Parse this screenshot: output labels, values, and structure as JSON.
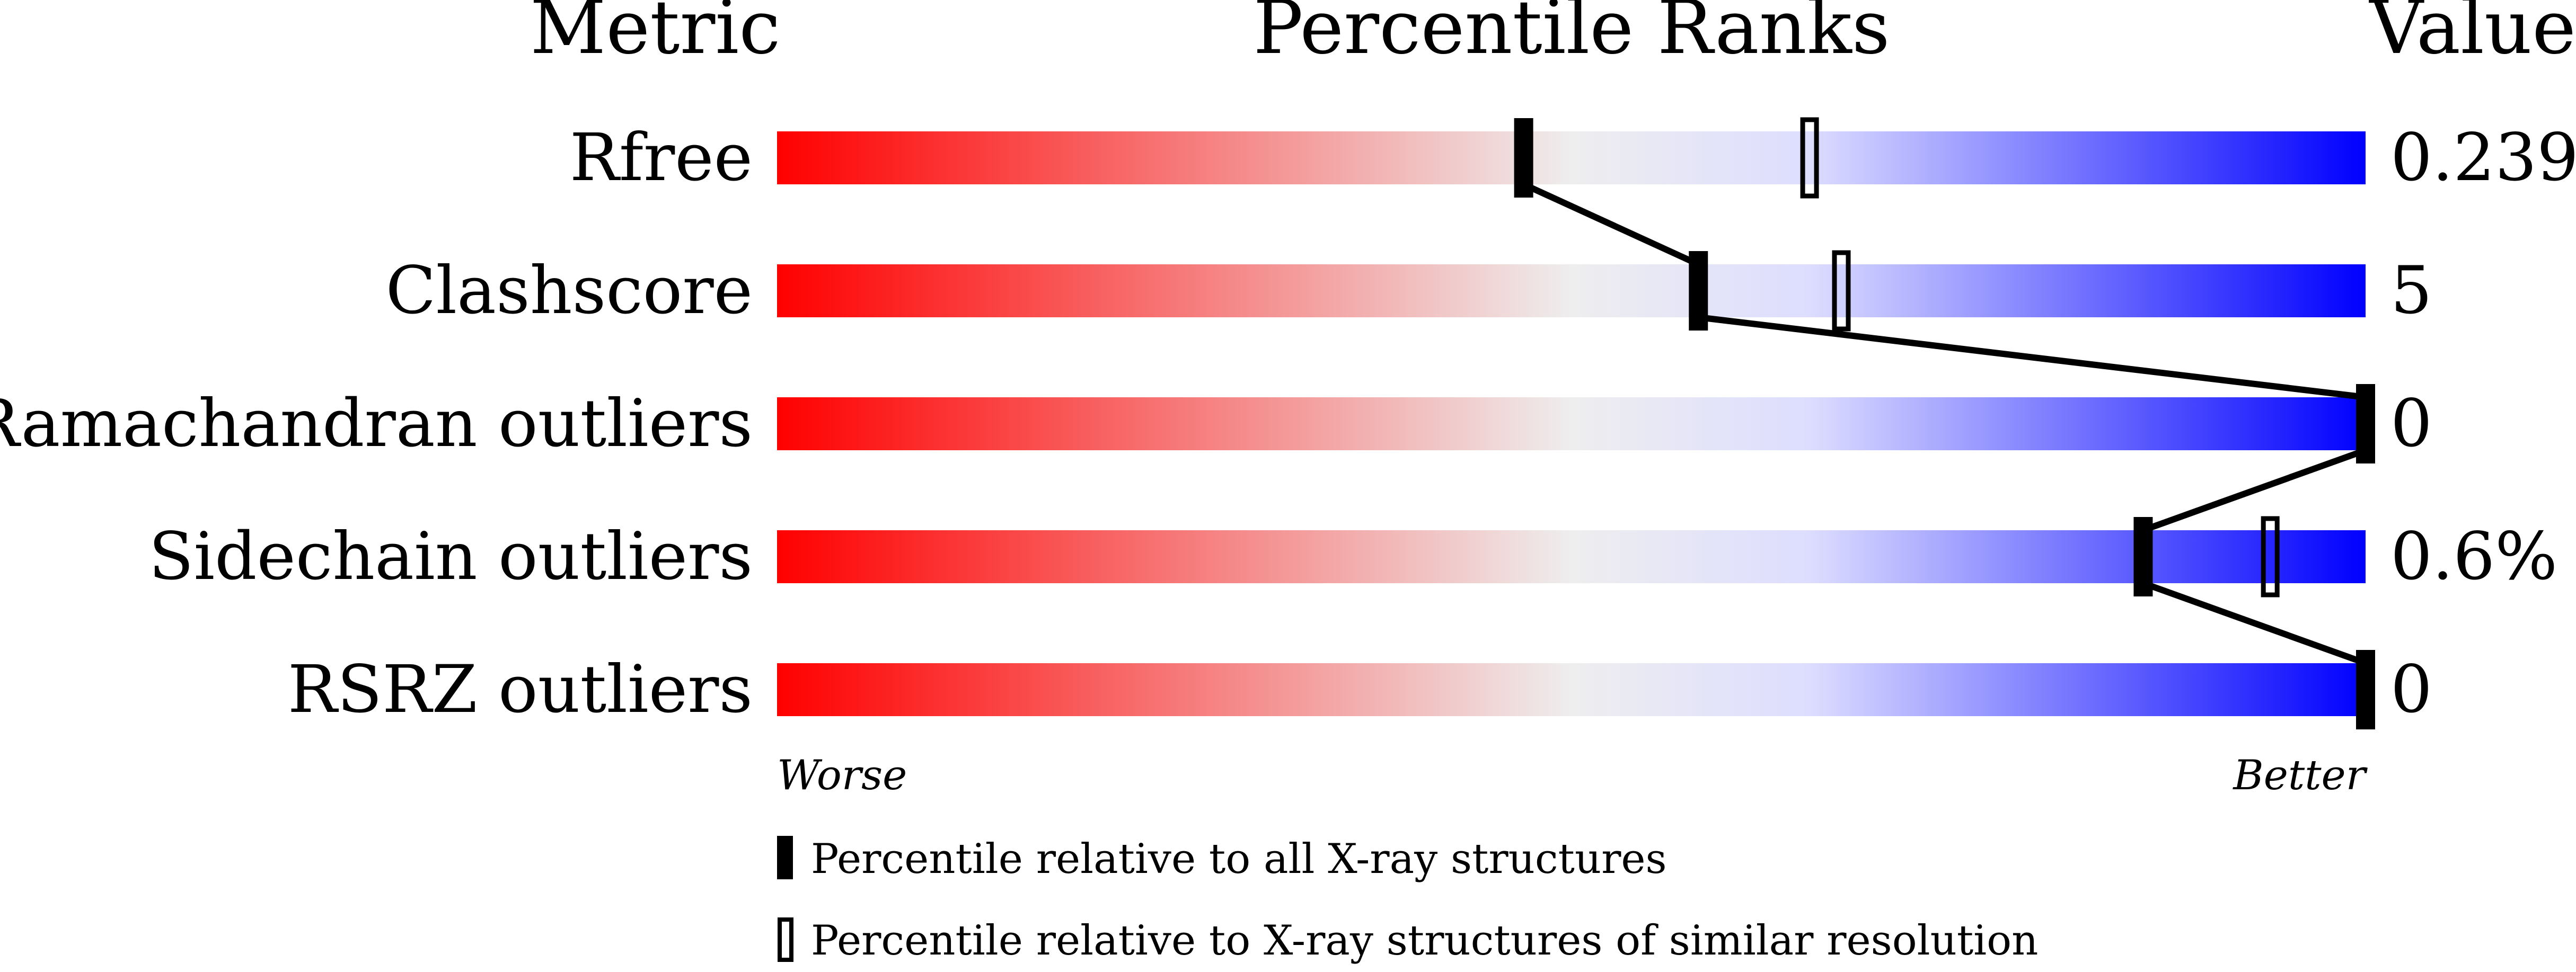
{
  "chart_data": {
    "type": "bar",
    "headers": {
      "metric": "Metric",
      "ranks": "Percentile Ranks",
      "value": "Value"
    },
    "metrics": [
      {
        "label": "Rfree",
        "value": "0.239",
        "percentile_all": 47,
        "percentile_similar": 65
      },
      {
        "label": "Clashscore",
        "value": "5",
        "percentile_all": 58,
        "percentile_similar": 67
      },
      {
        "label": "Ramachandran outliers",
        "value": "0",
        "percentile_all": 100,
        "percentile_similar": null
      },
      {
        "label": "Sidechain outliers",
        "value": "0.6%",
        "percentile_all": 86,
        "percentile_similar": 94
      },
      {
        "label": "RSRZ outliers",
        "value": "0",
        "percentile_all": 100,
        "percentile_similar": null
      }
    ],
    "xlim": [
      0,
      100
    ],
    "axis_left_label": "Worse",
    "axis_right_label": "Better",
    "gradient_colors": [
      "#ff0000",
      "#eeeeee",
      "#ddddff",
      "#0000ff"
    ],
    "legend": {
      "all": "Percentile relative to all X-ray structures",
      "similar": "Percentile relative to X-ray structures of similar resolution"
    }
  }
}
